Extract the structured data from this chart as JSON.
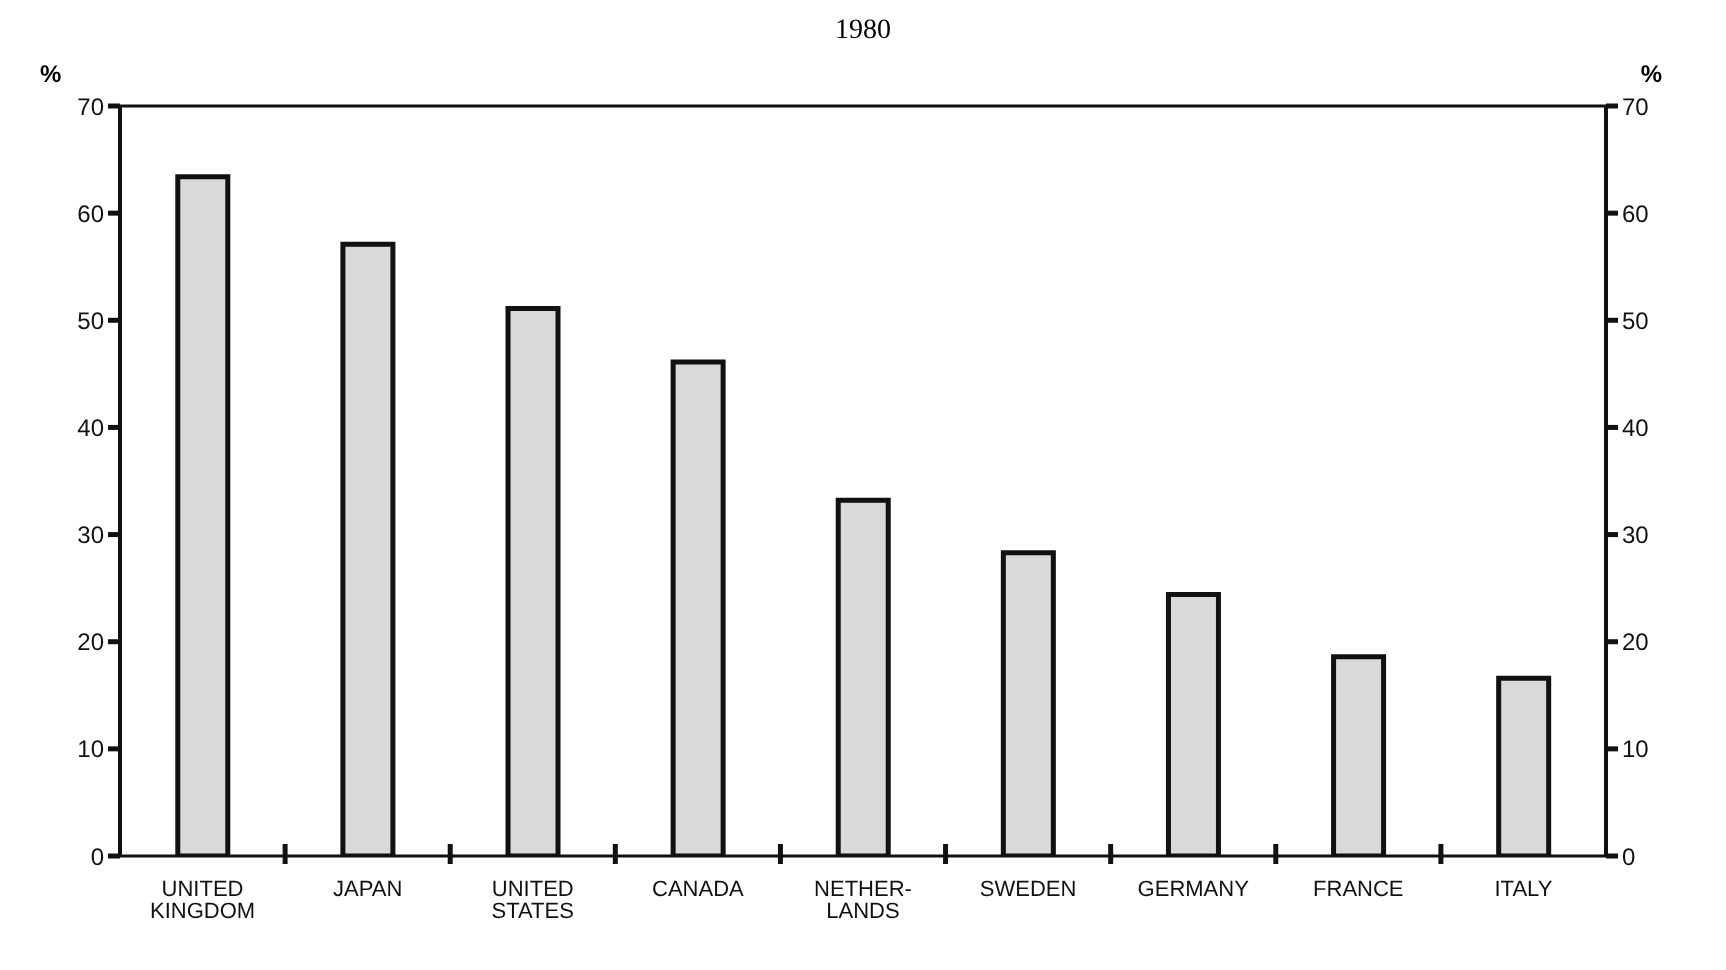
{
  "chart_data": {
    "type": "bar",
    "title": "1980",
    "ylabel": "%",
    "y2label": "%",
    "categories": [
      "UNITED KINGDOM",
      "JAPAN",
      "UNITED STATES",
      "CANADA",
      "NETHER-LANDS",
      "SWEDEN",
      "GERMANY",
      "FRANCE",
      "ITALY"
    ],
    "values": [
      63.4,
      57.1,
      51.1,
      46.1,
      33.2,
      28.3,
      24.4,
      18.6,
      16.6
    ],
    "color": "#d9d9d9",
    "ylim": [
      0,
      70
    ],
    "yticks": [
      0,
      10,
      20,
      30,
      40,
      50,
      60,
      70
    ],
    "y2lim": [
      0,
      70
    ],
    "y2ticks": [
      0,
      10,
      20,
      30,
      40,
      50,
      60,
      70
    ],
    "grid": false,
    "legend": false
  }
}
